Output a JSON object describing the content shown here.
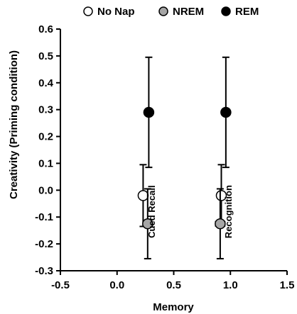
{
  "chart_data": {
    "type": "scatter",
    "xlabel": "Memory",
    "ylabel": "Creativity (Priming condition)",
    "xlim": [
      -0.5,
      1.5
    ],
    "ylim": [
      -0.3,
      0.6
    ],
    "xticks": [
      "-0.5",
      "0.0",
      "0.5",
      "1.0",
      "1.5"
    ],
    "yticks": [
      "-0.3",
      "-0.2",
      "-0.1",
      "0.0",
      "0.1",
      "0.2",
      "0.3",
      "0.4",
      "0.5",
      "0.6"
    ],
    "legend_position": "top",
    "series": [
      {
        "name": "No Nap",
        "fill": "#ffffff",
        "points": [
          {
            "x": 0.23,
            "y": -0.02,
            "y_err": 0.115
          },
          {
            "x": 0.92,
            "y": -0.02,
            "y_err": 0.115
          }
        ]
      },
      {
        "name": "NREM",
        "fill": "#a6a6a6",
        "points": [
          {
            "x": 0.27,
            "y": -0.125,
            "y_err": 0.13,
            "x_err": 0.04
          },
          {
            "x": 0.91,
            "y": -0.125,
            "y_err": 0.13,
            "x_err": 0.04
          }
        ]
      },
      {
        "name": "REM",
        "fill": "#000000",
        "points": [
          {
            "x": 0.28,
            "y": 0.29,
            "y_err": 0.205
          },
          {
            "x": 0.96,
            "y": 0.29,
            "y_err": 0.205
          }
        ]
      }
    ],
    "annotations": [
      {
        "text": "Cued Recall",
        "x": 0.335,
        "y": -0.08
      },
      {
        "text": "Recognition",
        "x": 1.01,
        "y": -0.08
      }
    ]
  }
}
